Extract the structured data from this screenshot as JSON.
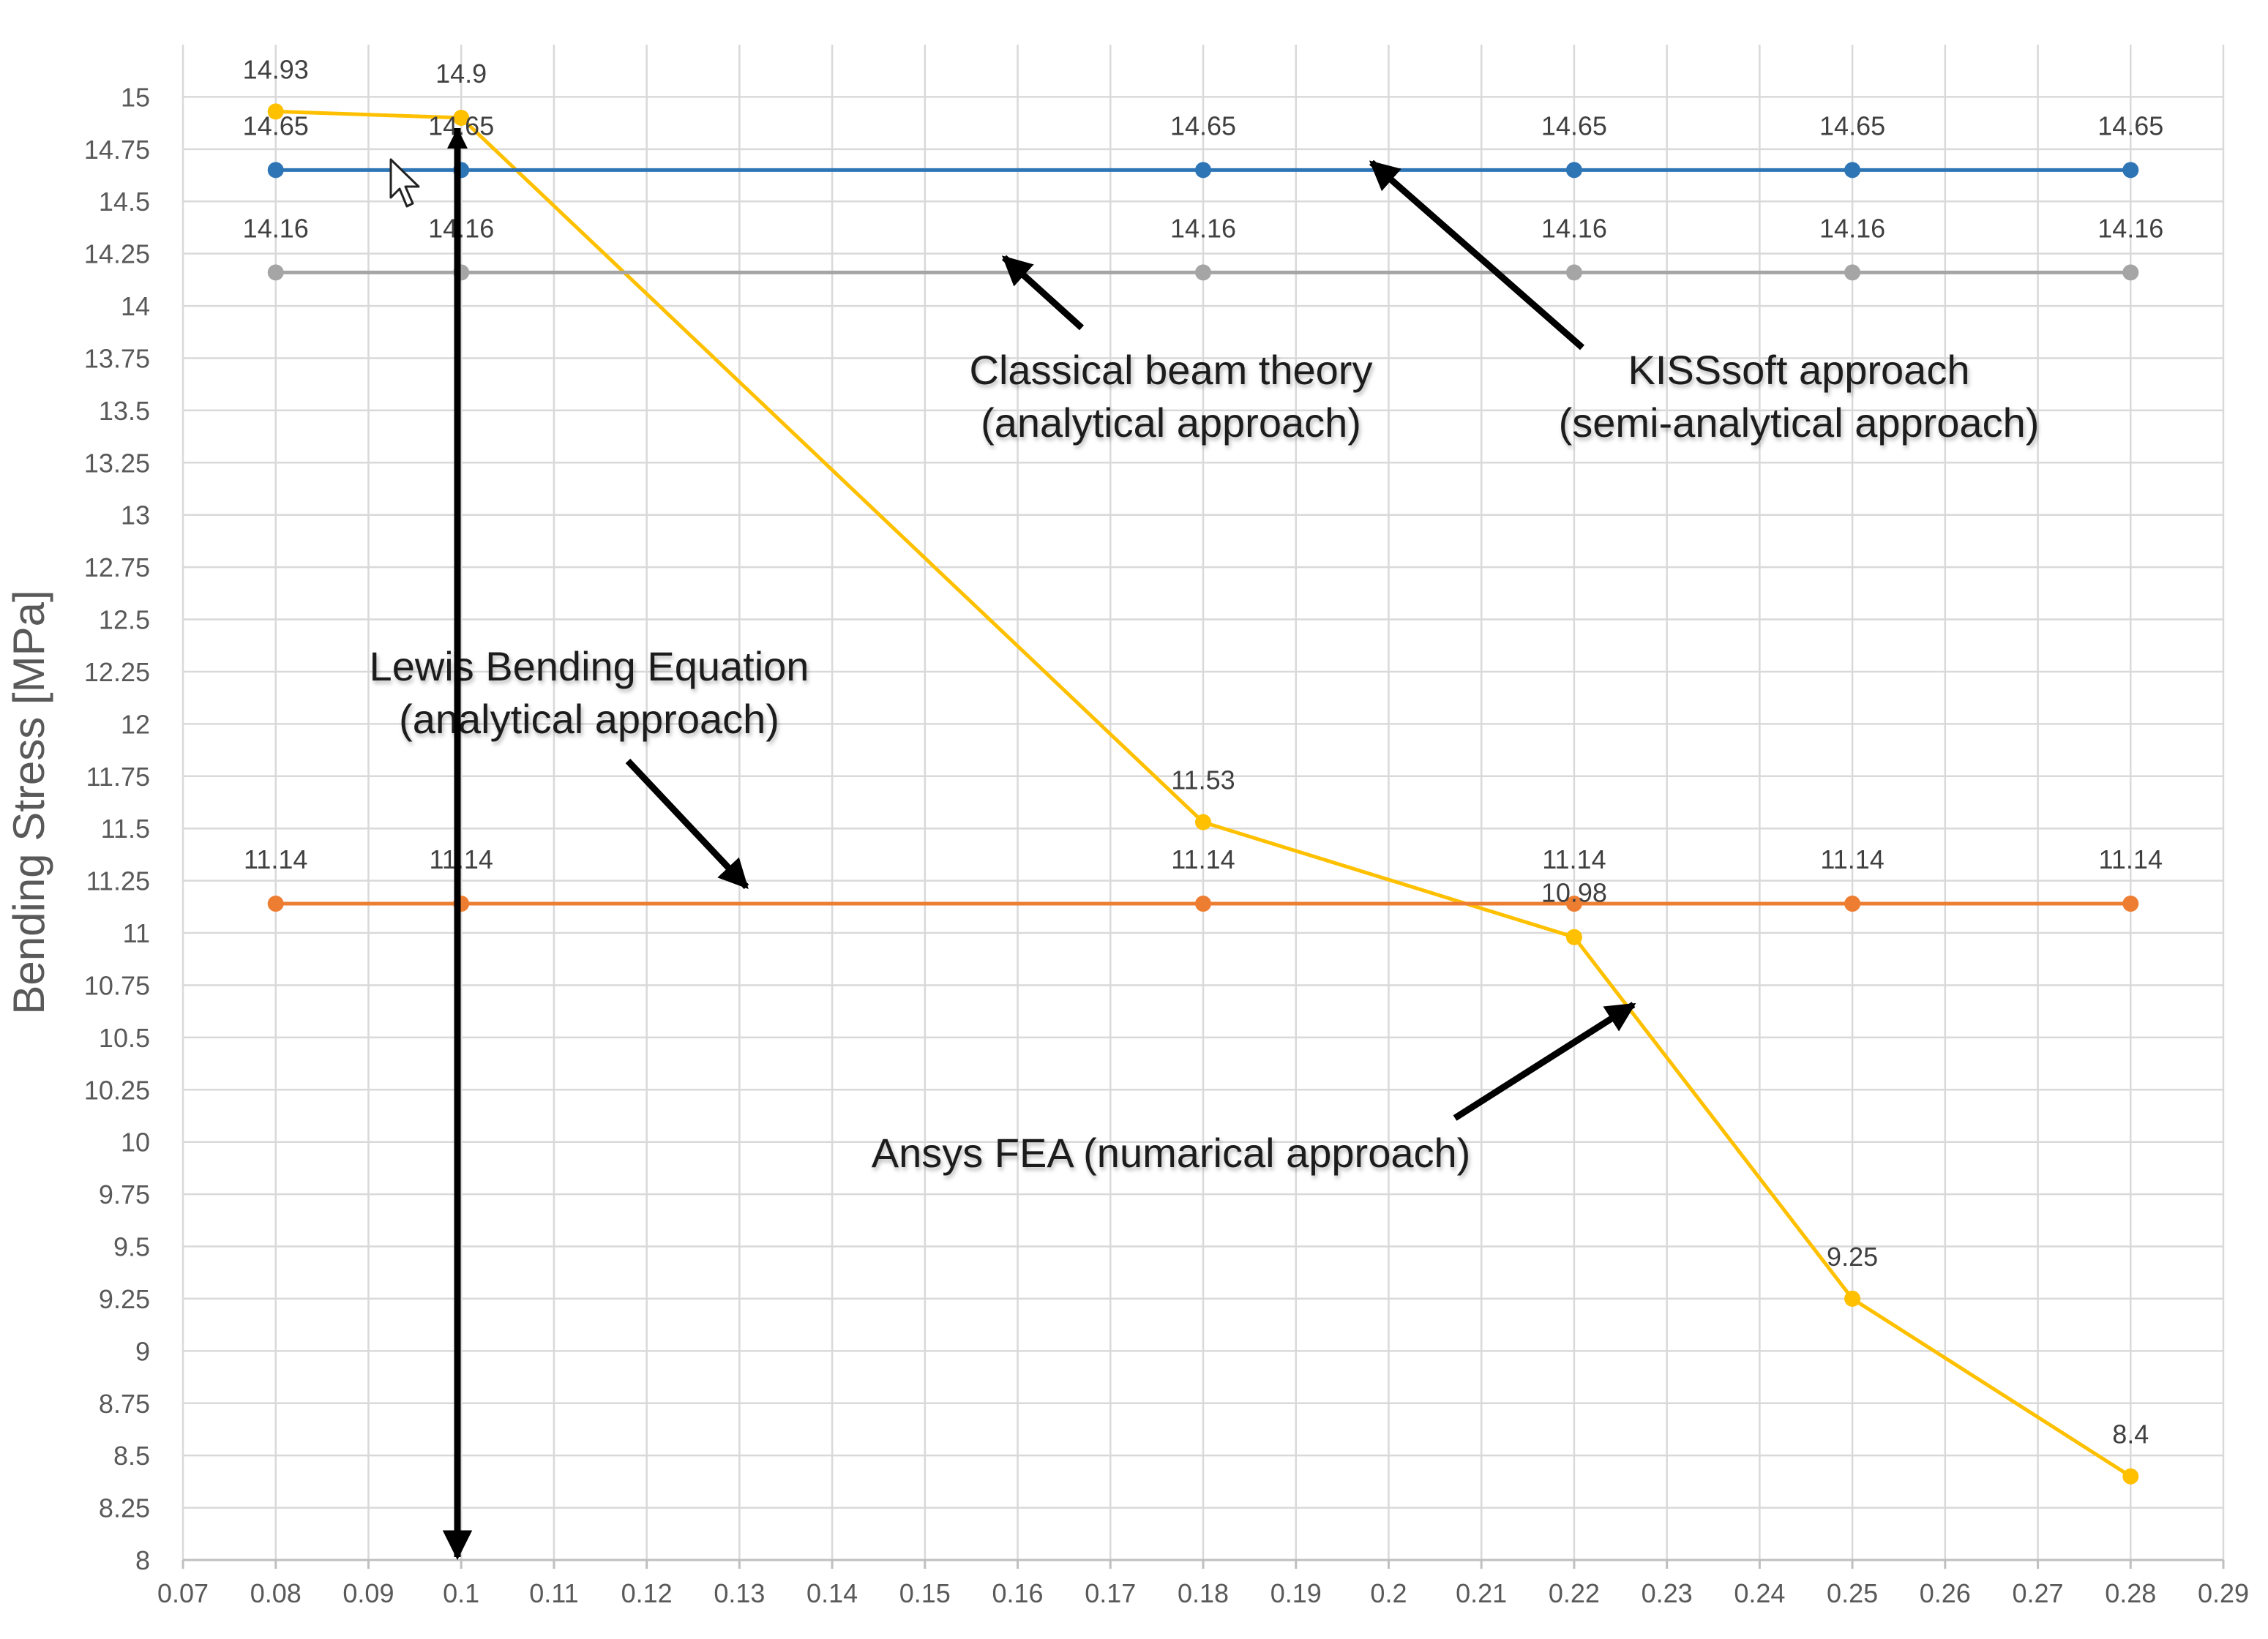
{
  "chart_data": {
    "type": "line",
    "title": "",
    "xlabel": "",
    "ylabel": "Bending Stress [MPa]",
    "xlim": [
      0.07,
      0.29
    ],
    "ylim": [
      8,
      15.25
    ],
    "x_ticks": [
      "0.07",
      "0.08",
      "0.09",
      "0.1",
      "0.11",
      "0.12",
      "0.13",
      "0.14",
      "0.15",
      "0.16",
      "0.17",
      "0.18",
      "0.19",
      "0.2",
      "0.21",
      "0.22",
      "0.23",
      "0.24",
      "0.25",
      "0.26",
      "0.27",
      "0.28",
      "0.29"
    ],
    "y_ticks": [
      "8",
      "8.25",
      "8.5",
      "8.75",
      "9",
      "9.25",
      "9.5",
      "9.75",
      "10",
      "10.25",
      "10.5",
      "10.75",
      "11",
      "11.25",
      "11.5",
      "11.75",
      "12",
      "12.25",
      "12.5",
      "12.75",
      "13",
      "13.25",
      "13.5",
      "13.75",
      "14",
      "14.25",
      "14.5",
      "14.75",
      "15"
    ],
    "grid": true,
    "series": [
      {
        "color": "#ffc000",
        "x": [
          0.08,
          0.1,
          0.18,
          0.22,
          0.25,
          0.28
        ],
        "values": [
          14.93,
          14.9,
          11.53,
          10.98,
          9.25,
          8.4
        ],
        "labels": [
          "14.93",
          "14.9",
          "11.53",
          "10.98",
          "9.25",
          "8.4"
        ]
      },
      {
        "color": "#2e75b6",
        "x": [
          0.08,
          0.1,
          0.18,
          0.22,
          0.25,
          0.28
        ],
        "values": [
          14.65,
          14.65,
          14.65,
          14.65,
          14.65,
          14.65
        ],
        "labels": [
          "14.65",
          "14.65",
          "14.65",
          "14.65",
          "14.65",
          "14.65"
        ]
      },
      {
        "color": "#a5a5a5",
        "x": [
          0.08,
          0.1,
          0.18,
          0.22,
          0.25,
          0.28
        ],
        "values": [
          14.16,
          14.16,
          14.16,
          14.16,
          14.16,
          14.16
        ],
        "labels": [
          "14.16",
          "14.16",
          "14.16",
          "14.16",
          "14.16",
          "14.16"
        ]
      },
      {
        "color": "#ed7d31",
        "x": [
          0.08,
          0.1,
          0.18,
          0.22,
          0.25,
          0.28
        ],
        "values": [
          11.14,
          11.14,
          11.14,
          11.14,
          11.14,
          11.14
        ],
        "labels": [
          "11.14",
          "11.14",
          "11.14",
          "11.14",
          "11.14",
          "11.14"
        ]
      }
    ],
    "annotations": [
      {
        "lines": [
          "Classical beam theory",
          "(analytical approach)"
        ]
      },
      {
        "lines": [
          "KISSsoft approach",
          "(semi-analytical approach)"
        ]
      },
      {
        "lines": [
          "Lewis Bending Equation",
          "(analytical approach)"
        ]
      },
      {
        "lines": [
          "Ansys FEA (numarical approach)"
        ]
      }
    ]
  }
}
